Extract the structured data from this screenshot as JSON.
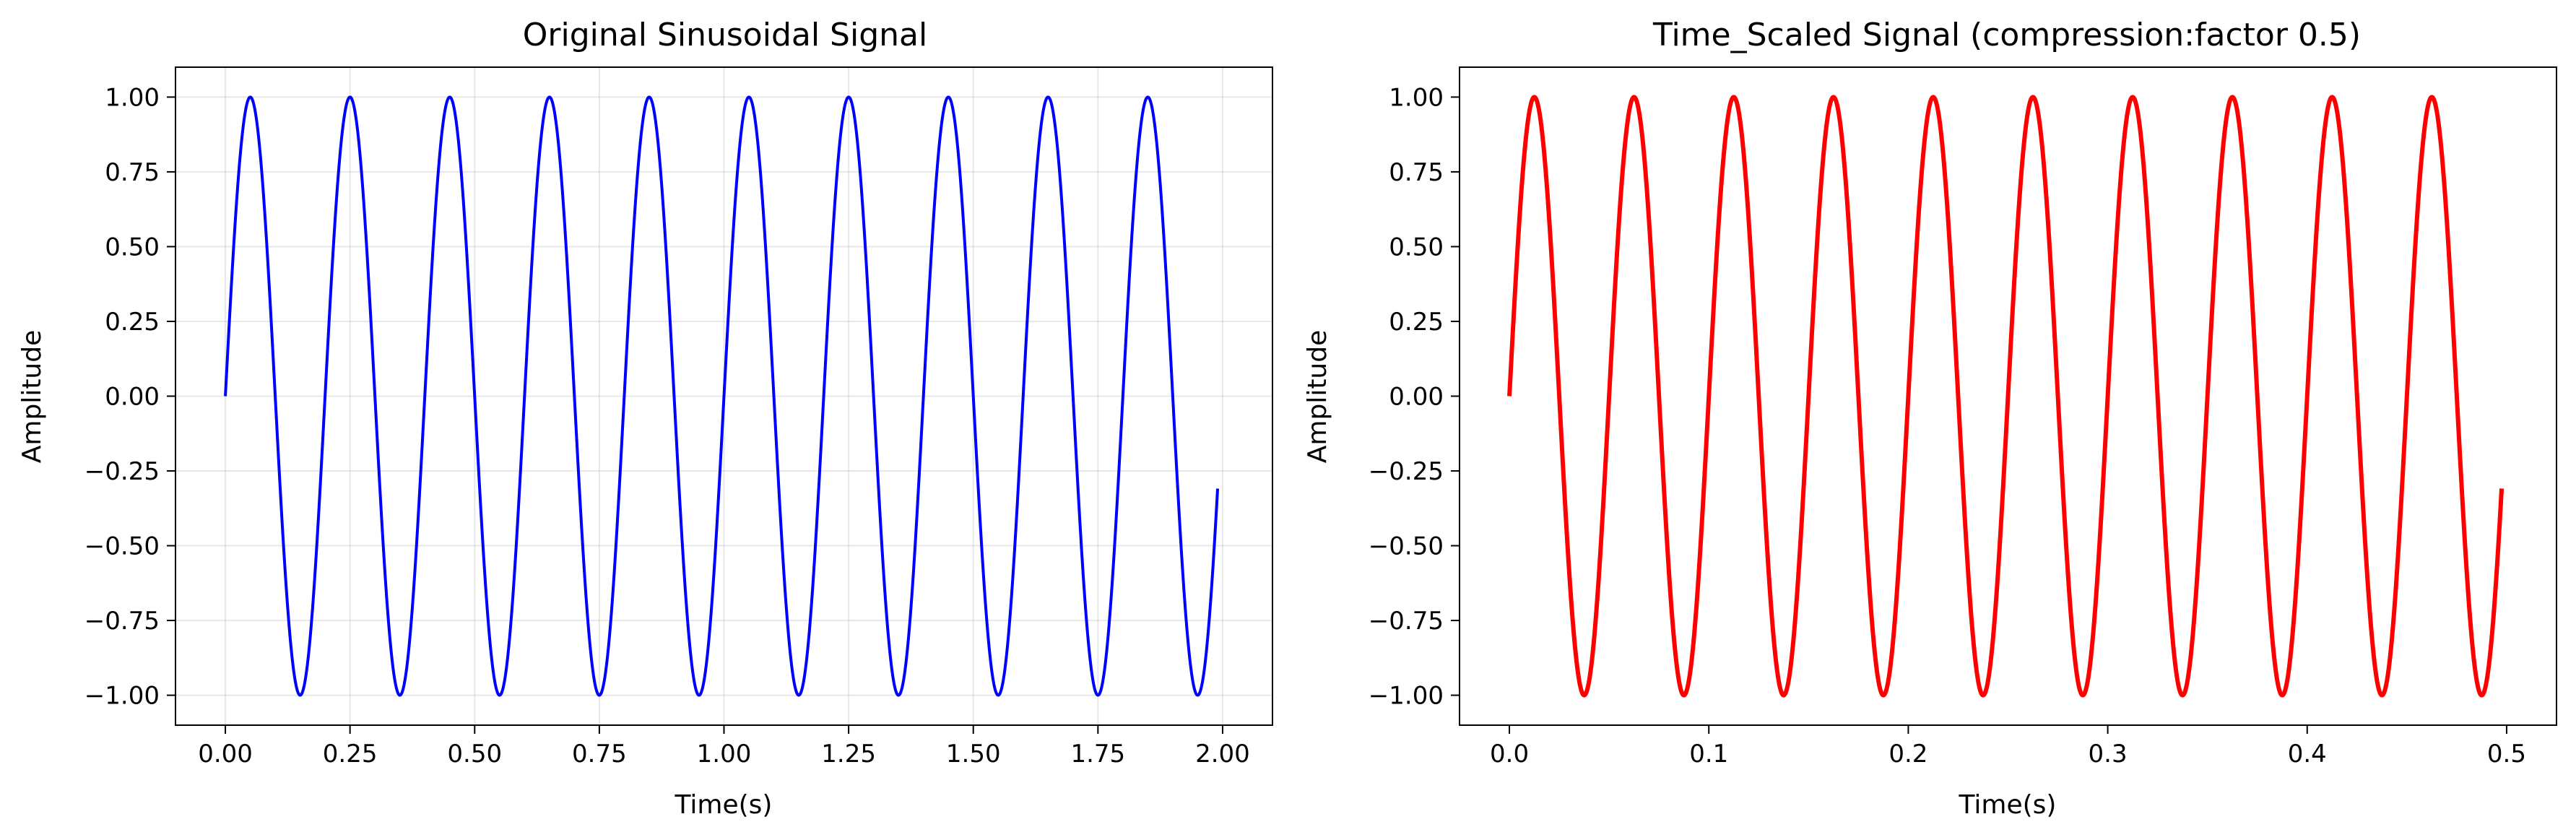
{
  "chart_data": [
    {
      "type": "line",
      "title": "Original Sinusoidal Signal",
      "xlabel": "Time(s)",
      "ylabel": "Amplitude",
      "xlim": [
        -0.1,
        2.1
      ],
      "ylim": [
        -1.1,
        1.1
      ],
      "xticks": [
        "0.00",
        "0.25",
        "0.50",
        "0.75",
        "1.00",
        "1.25",
        "1.50",
        "1.75",
        "2.00"
      ],
      "yticks": [
        "−1.00",
        "−0.75",
        "−0.50",
        "−0.25",
        "0.00",
        "0.25",
        "0.50",
        "0.75",
        "1.00"
      ],
      "grid": true,
      "series": [
        {
          "color": "#0000ff",
          "x_start": 0.0,
          "x_end": 1.99,
          "frequency_hz": 5,
          "amplitude": 1.0
        }
      ]
    },
    {
      "type": "line",
      "title": "Time_Scaled Signal (compression:factor 0.5)",
      "xlabel": "Time(s)",
      "ylabel": "Amplitude",
      "xlim": [
        -0.025,
        0.525
      ],
      "ylim": [
        -1.1,
        1.1
      ],
      "xticks": [
        "0.0",
        "0.1",
        "0.2",
        "0.3",
        "0.4",
        "0.5"
      ],
      "yticks": [
        "−1.00",
        "−0.75",
        "−0.50",
        "−0.25",
        "0.00",
        "0.25",
        "0.50",
        "0.75",
        "1.00"
      ],
      "grid": false,
      "series": [
        {
          "color": "#ff0000",
          "x_start": 0.0,
          "x_end": 0.4975,
          "frequency_hz": 20,
          "amplitude": 1.0
        }
      ]
    }
  ]
}
